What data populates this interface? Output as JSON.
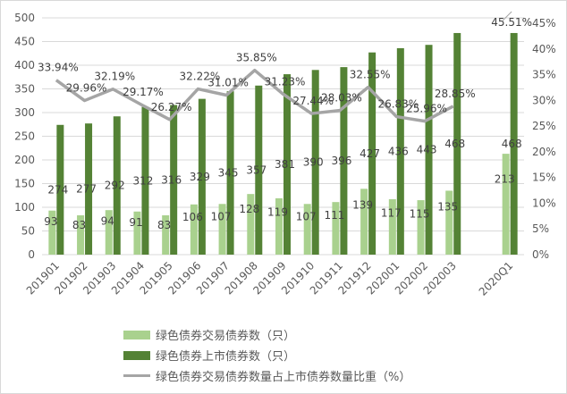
{
  "chart_data": {
    "type": "bar",
    "categories": [
      "201901",
      "201902",
      "201903",
      "201904",
      "201905",
      "201906",
      "201907",
      "201908",
      "201909",
      "201910",
      "201911",
      "201912",
      "202001",
      "202002",
      "202003",
      "",
      "2020Q1"
    ],
    "series": [
      {
        "name": "绿色债券交易债券数（只）",
        "type": "bar",
        "axis": "left",
        "color": "#a9d18e",
        "values": [
          93,
          83,
          94,
          91,
          83,
          106,
          107,
          128,
          119,
          107,
          111,
          139,
          117,
          115,
          135,
          null,
          213
        ]
      },
      {
        "name": "绿色债券上市债券数（只）",
        "type": "bar",
        "axis": "left",
        "color": "#548235",
        "values": [
          274,
          277,
          292,
          312,
          316,
          329,
          345,
          357,
          381,
          390,
          396,
          427,
          436,
          443,
          468,
          null,
          468
        ]
      },
      {
        "name": "绿色债券交易债券数量占上市债券数量比重（%）",
        "type": "line",
        "axis": "right",
        "color": "#a5a5a5",
        "values": [
          33.94,
          29.96,
          32.19,
          29.17,
          26.27,
          32.22,
          31.01,
          35.85,
          31.23,
          27.44,
          28.03,
          32.55,
          26.83,
          25.96,
          28.85,
          null,
          45.51
        ],
        "labels": [
          "33.94%",
          "29.96%",
          "32.19%",
          "29.17%",
          "26.27%",
          "32.22%",
          "31.01%",
          "35.85%",
          "31.23%",
          "27.44%",
          "28.03%",
          "32.55%",
          "26.83%",
          "25.96%",
          "28.85%",
          "",
          "45.51%"
        ]
      }
    ],
    "y_left": {
      "min": 0,
      "max": 500,
      "ticks": [
        "0",
        "50",
        "100",
        "150",
        "200",
        "250",
        "300",
        "350",
        "400",
        "450",
        "500"
      ]
    },
    "y_right": {
      "min": 0,
      "max": 45,
      "ticks": [
        "0%",
        "5%",
        "10%",
        "15%",
        "20%",
        "25%",
        "30%",
        "35%",
        "40%",
        "45%"
      ]
    },
    "grid": true,
    "legend_position": "bottom",
    "title": "",
    "xlabel": "",
    "ylabel": ""
  }
}
